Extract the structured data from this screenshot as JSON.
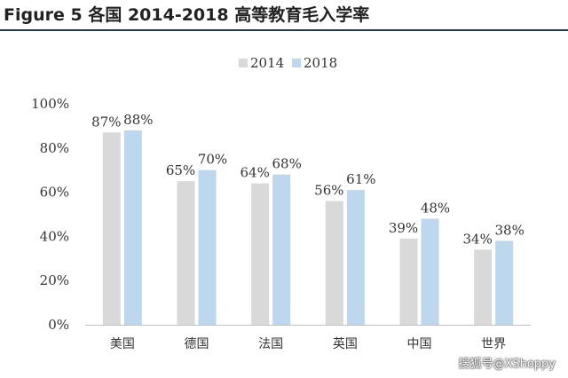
{
  "figure": {
    "title": "Figure 5  各国 2014-2018 高等教育毛入学率"
  },
  "watermark": "搜狐号@XShoppy",
  "chart_data": {
    "type": "bar",
    "categories": [
      "美国",
      "德国",
      "法国",
      "英国",
      "中国",
      "世界"
    ],
    "series": [
      {
        "name": "2014",
        "values": [
          87,
          65,
          64,
          56,
          39,
          34
        ],
        "color": "#d9d9d9"
      },
      {
        "name": "2018",
        "values": [
          88,
          70,
          68,
          61,
          48,
          38
        ],
        "color": "#bdd7ee"
      }
    ],
    "data_labels": [
      [
        "87%",
        "65%",
        "64%",
        "56%",
        "39%",
        "34%"
      ],
      [
        "88%",
        "70%",
        "68%",
        "61%",
        "48%",
        "38%"
      ]
    ],
    "ylim": [
      0,
      100
    ],
    "yticks": [
      0,
      20,
      40,
      60,
      80,
      100
    ],
    "ytick_labels": [
      "0%",
      "20%",
      "40%",
      "60%",
      "80%",
      "100%"
    ],
    "legend_position": "top-center",
    "grid": false
  }
}
